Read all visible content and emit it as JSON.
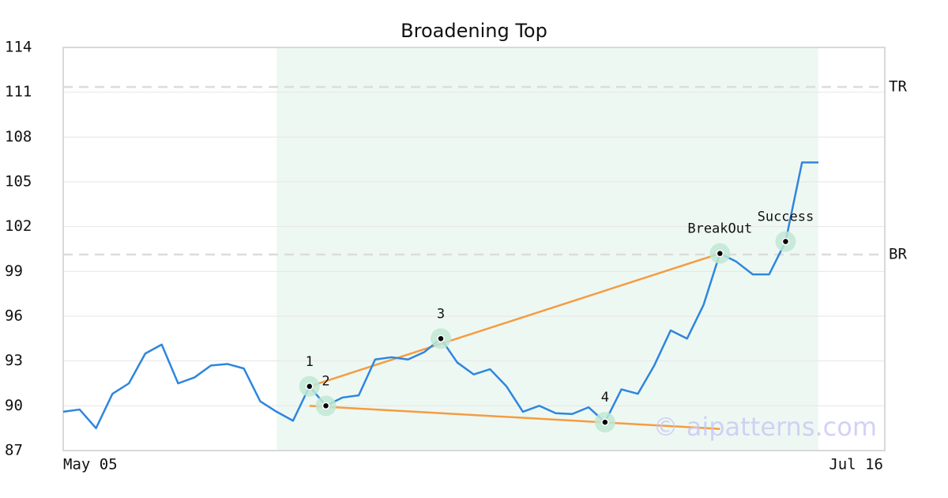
{
  "chart_data": {
    "type": "line",
    "title": "Broadening Top",
    "categories": [
      "May 05",
      null,
      null,
      null,
      null,
      null,
      null,
      null,
      null,
      null,
      null,
      null,
      null,
      null,
      null,
      null,
      null,
      null,
      null,
      null,
      null,
      null,
      null,
      null,
      null,
      null,
      null,
      null,
      null,
      null,
      null,
      null,
      null,
      null,
      null,
      null,
      null,
      null,
      null,
      null,
      null,
      null,
      null,
      null,
      null,
      null,
      "Jul 16"
    ],
    "values": [
      89.6,
      89.75,
      88.5,
      90.8,
      91.5,
      93.5,
      94.1,
      91.5,
      91.9,
      92.7,
      92.8,
      92.5,
      90.3,
      89.6,
      89.0,
      91.3,
      90.0,
      90.55,
      90.7,
      93.1,
      93.25,
      93.1,
      93.6,
      94.5,
      92.9,
      92.1,
      92.45,
      91.3,
      89.6,
      90.0,
      89.5,
      89.45,
      89.9,
      88.9,
      91.1,
      90.8,
      92.7,
      95.05,
      94.5,
      96.75,
      100.2,
      99.65,
      98.8,
      98.8,
      101.0,
      106.3,
      106.3
    ],
    "color": "#2e86de",
    "ylim": [
      87,
      114
    ],
    "yticks": [
      87,
      90,
      93,
      96,
      99,
      102,
      105,
      108,
      111,
      114
    ],
    "grid": true,
    "shade_range": [
      13,
      46
    ],
    "hlines": [
      {
        "label": "TR",
        "value": 111.35
      },
      {
        "label": "BR",
        "value": 100.13
      }
    ],
    "trendlines": [
      {
        "color": "#f59c42",
        "points": [
          {
            "index": 15,
            "value": 91.3
          },
          {
            "index": 40,
            "value": 100.2
          }
        ]
      },
      {
        "color": "#f59c42",
        "points": [
          {
            "index": 15,
            "value": 90.0
          },
          {
            "index": 40,
            "value": 88.45
          }
        ]
      }
    ],
    "annotations": [
      {
        "label": "1",
        "index": 15
      },
      {
        "label": "2",
        "index": 16
      },
      {
        "label": "3",
        "index": 23
      },
      {
        "label": "4",
        "index": 33
      },
      {
        "label": "BreakOut",
        "index": 40
      },
      {
        "label": "Success",
        "index": 44
      }
    ],
    "watermark": "© aipatterns.com"
  }
}
